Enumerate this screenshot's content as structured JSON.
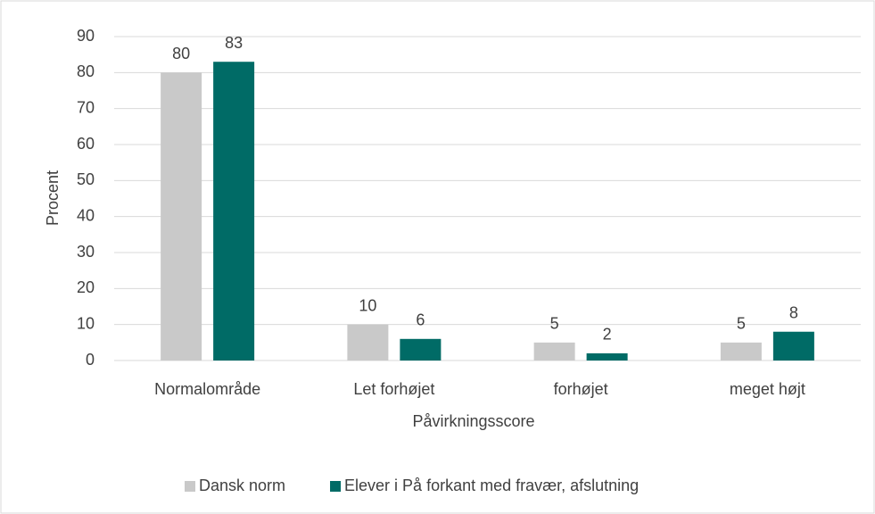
{
  "chart_data": {
    "type": "bar",
    "x_label": "Påvirkningsscore",
    "y_label": "Procent",
    "categories": [
      "Normalområde",
      "Let forhøjet",
      "forhøjet",
      "meget højt"
    ],
    "series": [
      {
        "name": "Dansk norm",
        "color": "#c9c9c9",
        "values": [
          80,
          10,
          5,
          5
        ]
      },
      {
        "name": "Elever i På forkant med fravær, afslutning",
        "color": "#006b66",
        "values": [
          83,
          6,
          2,
          8
        ]
      }
    ],
    "ylim": [
      0,
      90
    ],
    "yticks": [
      0,
      10,
      20,
      30,
      40,
      50,
      60,
      70,
      80,
      90
    ],
    "grid": true,
    "legend": "bottom",
    "data_labels": true
  }
}
